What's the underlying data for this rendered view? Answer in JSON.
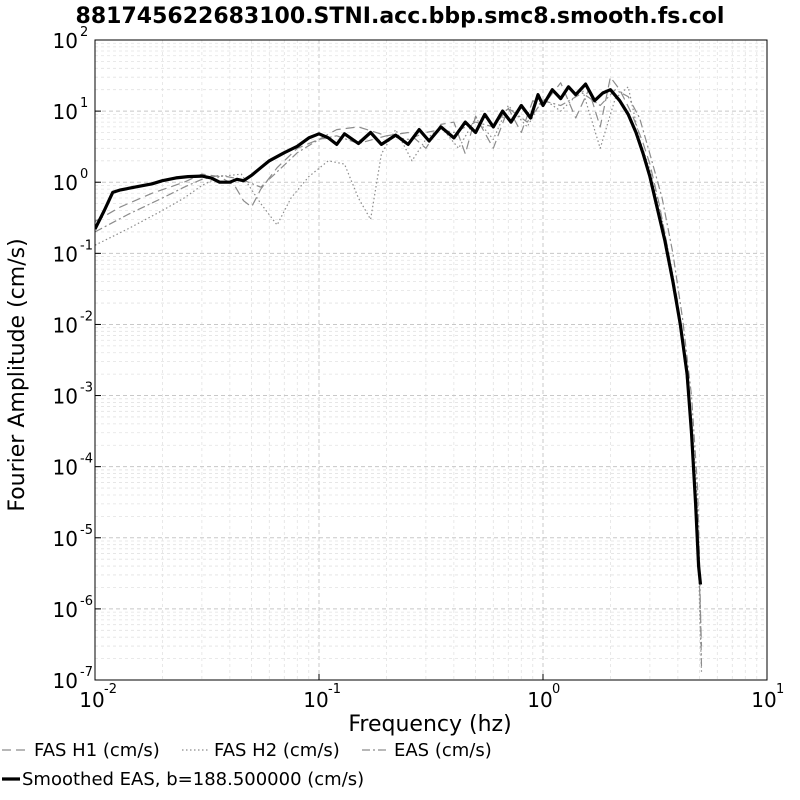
{
  "chart_data": {
    "type": "line",
    "title": "881745622683100.STNI.acc.bbp.smc8.smooth.fs.col",
    "xlabel": "Frequency (hz)",
    "ylabel": "Fourier Amplitude (cm/s)",
    "x_scale": "log",
    "y_scale": "log",
    "xlim": [
      0.01,
      10
    ],
    "ylim": [
      1e-07,
      100
    ],
    "grid": true,
    "legend_position": "bottom",
    "x_ticks": [
      {
        "base": "10",
        "exp": "-2",
        "value": 0.01
      },
      {
        "base": "10",
        "exp": "-1",
        "value": 0.1
      },
      {
        "base": "10",
        "exp": "0",
        "value": 1
      },
      {
        "base": "10",
        "exp": "1",
        "value": 10
      }
    ],
    "y_ticks": [
      {
        "base": "10",
        "exp": "2",
        "value": 100
      },
      {
        "base": "10",
        "exp": "1",
        "value": 10
      },
      {
        "base": "10",
        "exp": "0",
        "value": 1
      },
      {
        "base": "10",
        "exp": "-1",
        "value": 0.1
      },
      {
        "base": "10",
        "exp": "-2",
        "value": 0.01
      },
      {
        "base": "10",
        "exp": "-3",
        "value": 0.001
      },
      {
        "base": "10",
        "exp": "-4",
        "value": 0.0001
      },
      {
        "base": "10",
        "exp": "-5",
        "value": 1e-05
      },
      {
        "base": "10",
        "exp": "-6",
        "value": 1e-06
      },
      {
        "base": "10",
        "exp": "-7",
        "value": 1e-07
      }
    ],
    "series": [
      {
        "name": "FAS H1 (cm/s)",
        "style": "dashed",
        "color": "#8c8c8c",
        "x": [
          0.01,
          0.013,
          0.018,
          0.025,
          0.03,
          0.036,
          0.042,
          0.046,
          0.05,
          0.055,
          0.065,
          0.08,
          0.1,
          0.12,
          0.15,
          0.2,
          0.25,
          0.3,
          0.35,
          0.4,
          0.45,
          0.5,
          0.6,
          0.7,
          0.8,
          0.9,
          1.0,
          1.2,
          1.4,
          1.6,
          1.8,
          2.0,
          2.2,
          2.5,
          2.8,
          3.0,
          3.3,
          3.6,
          4.0,
          4.3,
          4.6,
          4.8,
          5.0,
          5.1
        ],
        "y": [
          0.28,
          0.45,
          0.7,
          1.0,
          1.3,
          1.2,
          0.9,
          0.55,
          0.45,
          0.8,
          1.6,
          3.0,
          4.0,
          5.5,
          6.0,
          4.5,
          5.0,
          3.0,
          6.5,
          7.0,
          2.5,
          8.5,
          3.0,
          11.0,
          5.0,
          14.0,
          12.0,
          25.0,
          8.0,
          20.0,
          6.0,
          30.0,
          20.0,
          9.0,
          3.5,
          1.8,
          0.5,
          0.12,
          0.02,
          0.003,
          0.0003,
          2e-05,
          2e-06,
          3e-07
        ]
      },
      {
        "name": "FAS H2 (cm/s)",
        "style": "dotted",
        "color": "#8c8c8c",
        "x": [
          0.01,
          0.014,
          0.02,
          0.025,
          0.03,
          0.036,
          0.045,
          0.055,
          0.065,
          0.075,
          0.09,
          0.11,
          0.13,
          0.15,
          0.17,
          0.19,
          0.22,
          0.26,
          0.3,
          0.35,
          0.42,
          0.5,
          0.6,
          0.7,
          0.85,
          1.0,
          1.2,
          1.5,
          1.8,
          2.1,
          2.4,
          2.7,
          3.0,
          3.4,
          3.8,
          4.2,
          4.6,
          4.9,
          5.0,
          5.1
        ],
        "y": [
          0.13,
          0.22,
          0.4,
          0.6,
          0.9,
          1.2,
          1.3,
          0.5,
          0.25,
          0.6,
          1.2,
          2.0,
          1.8,
          0.6,
          0.3,
          2.5,
          5.5,
          2.0,
          4.0,
          6.0,
          3.0,
          8.0,
          4.0,
          12.0,
          6.0,
          15.0,
          10.0,
          20.0,
          3.0,
          15.0,
          22.0,
          4.0,
          1.5,
          0.3,
          0.05,
          0.006,
          0.0005,
          3e-05,
          1e-06,
          1.3e-07
        ]
      },
      {
        "name": "EAS (cm/s)",
        "style": "dashdot",
        "color": "#8c8c8c",
        "x": [
          0.01,
          0.014,
          0.02,
          0.025,
          0.03,
          0.036,
          0.045,
          0.055,
          0.065,
          0.08,
          0.1,
          0.12,
          0.15,
          0.2,
          0.25,
          0.3,
          0.35,
          0.4,
          0.5,
          0.6,
          0.7,
          0.85,
          1.0,
          1.2,
          1.5,
          1.8,
          2.1,
          2.4,
          2.7,
          3.0,
          3.4,
          3.8,
          4.2,
          4.6,
          4.9,
          5.0,
          5.1
        ],
        "y": [
          0.2,
          0.35,
          0.6,
          0.85,
          1.1,
          1.25,
          1.1,
          0.85,
          1.4,
          2.6,
          4.0,
          4.5,
          3.5,
          4.5,
          4.0,
          5.0,
          5.5,
          5.0,
          7.0,
          6.0,
          11.0,
          7.0,
          14.0,
          12.0,
          18.0,
          12.0,
          20.0,
          16.0,
          8.0,
          2.5,
          0.6,
          0.1,
          0.012,
          0.001,
          5e-05,
          4e-06,
          1.5e-07
        ]
      },
      {
        "name": "Smoothed EAS, b=188.500000 (cm/s)",
        "style": "solid-thick",
        "color": "#000000",
        "x": [
          0.01,
          0.011,
          0.012,
          0.013,
          0.015,
          0.018,
          0.02,
          0.023,
          0.026,
          0.03,
          0.033,
          0.036,
          0.04,
          0.043,
          0.046,
          0.05,
          0.055,
          0.06,
          0.07,
          0.08,
          0.09,
          0.1,
          0.11,
          0.12,
          0.13,
          0.15,
          0.17,
          0.19,
          0.22,
          0.25,
          0.28,
          0.31,
          0.35,
          0.4,
          0.45,
          0.5,
          0.55,
          0.6,
          0.66,
          0.72,
          0.8,
          0.88,
          0.95,
          1.0,
          1.1,
          1.2,
          1.3,
          1.4,
          1.55,
          1.7,
          1.85,
          2.0,
          2.2,
          2.4,
          2.6,
          2.8,
          3.0,
          3.2,
          3.5,
          3.8,
          4.1,
          4.4,
          4.6,
          4.8,
          4.95,
          5.05
        ],
        "y": [
          0.22,
          0.4,
          0.72,
          0.78,
          0.85,
          0.95,
          1.05,
          1.15,
          1.2,
          1.22,
          1.15,
          1.0,
          1.0,
          1.1,
          1.05,
          1.25,
          1.6,
          2.0,
          2.6,
          3.2,
          4.2,
          4.8,
          4.2,
          3.4,
          4.8,
          3.5,
          5.0,
          3.4,
          4.6,
          3.4,
          5.5,
          3.8,
          6.0,
          4.2,
          7.0,
          5.0,
          9.0,
          6.0,
          10.0,
          7.0,
          12.0,
          8.0,
          17.0,
          12.0,
          20.0,
          15.0,
          22.0,
          17.0,
          24.0,
          14.0,
          18.0,
          20.0,
          14.0,
          9.0,
          5.0,
          2.5,
          1.2,
          0.5,
          0.15,
          0.04,
          0.01,
          0.002,
          0.0003,
          3e-05,
          4e-06,
          2.2e-06
        ]
      }
    ]
  }
}
